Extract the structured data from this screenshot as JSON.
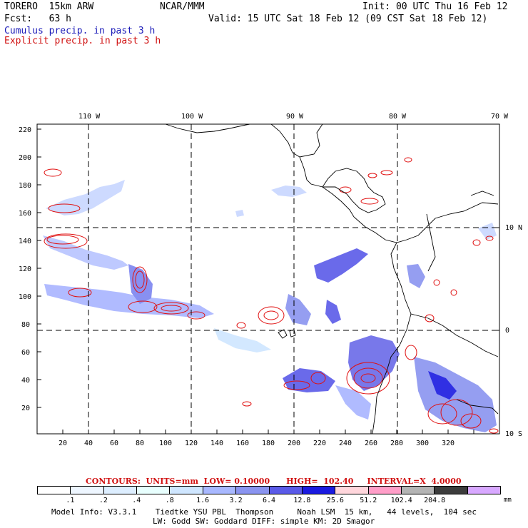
{
  "header": {
    "model": "TORERO  15km ARW",
    "org": "NCAR/MMM",
    "init": "Init: 00 UTC Thu 16 Feb 12",
    "fcst": "Fcst:   63 h",
    "valid": "Valid: 15 UTC Sat 18 Feb 12 (09 CST Sat 18 Feb 12)",
    "field1": "Cumulus precip. in past 3 h",
    "field2": "Explicit precip. in past 3 h"
  },
  "axes": {
    "top_lon_labels": [
      "110 W",
      "100 W",
      "90 W",
      "80 W",
      "70 W"
    ],
    "right_lat_labels": [
      "10 N",
      "0",
      "10 S"
    ],
    "left_y_labels": [
      "220",
      "200",
      "180",
      "160",
      "140",
      "120",
      "100",
      "80",
      "60",
      "40",
      "20"
    ],
    "bottom_x_labels": [
      "20",
      "40",
      "60",
      "80",
      "100",
      "120",
      "140",
      "160",
      "180",
      "200",
      "220",
      "240",
      "260",
      "280",
      "300",
      "320"
    ]
  },
  "contours_info": {
    "text": "CONTOURS:  UNITS=mm  LOW= 0.10000      HIGH=  102.40     INTERVAL=X  4.0000"
  },
  "colorbar": {
    "colors": [
      "#ffffff",
      "#eef6ff",
      "#ddeeff",
      "#e8fffe",
      "#cfe6ff",
      "#a8b8ff",
      "#8a94f0",
      "#5a5ae8",
      "#1a1ae0",
      "#ffd6dc",
      "#ff9ec8",
      "#b4b4b4",
      "#3c3c3c",
      "#d8a8ff"
    ],
    "labels": [
      ".1",
      ".2",
      ".4",
      ".8",
      "1.6",
      "3.2",
      "6.4",
      "12.8",
      "25.6",
      "51.2",
      "102.4",
      "204.8"
    ],
    "units": "mm"
  },
  "footer": {
    "line1": "Model Info: V3.3.1    Tiedtke YSU PBL  Thompson     Noah LSM  15 km,   44 levels,  104 sec",
    "line2": "LW: Godd SW: Goddard DIFF: simple KM: 2D Smagor"
  }
}
